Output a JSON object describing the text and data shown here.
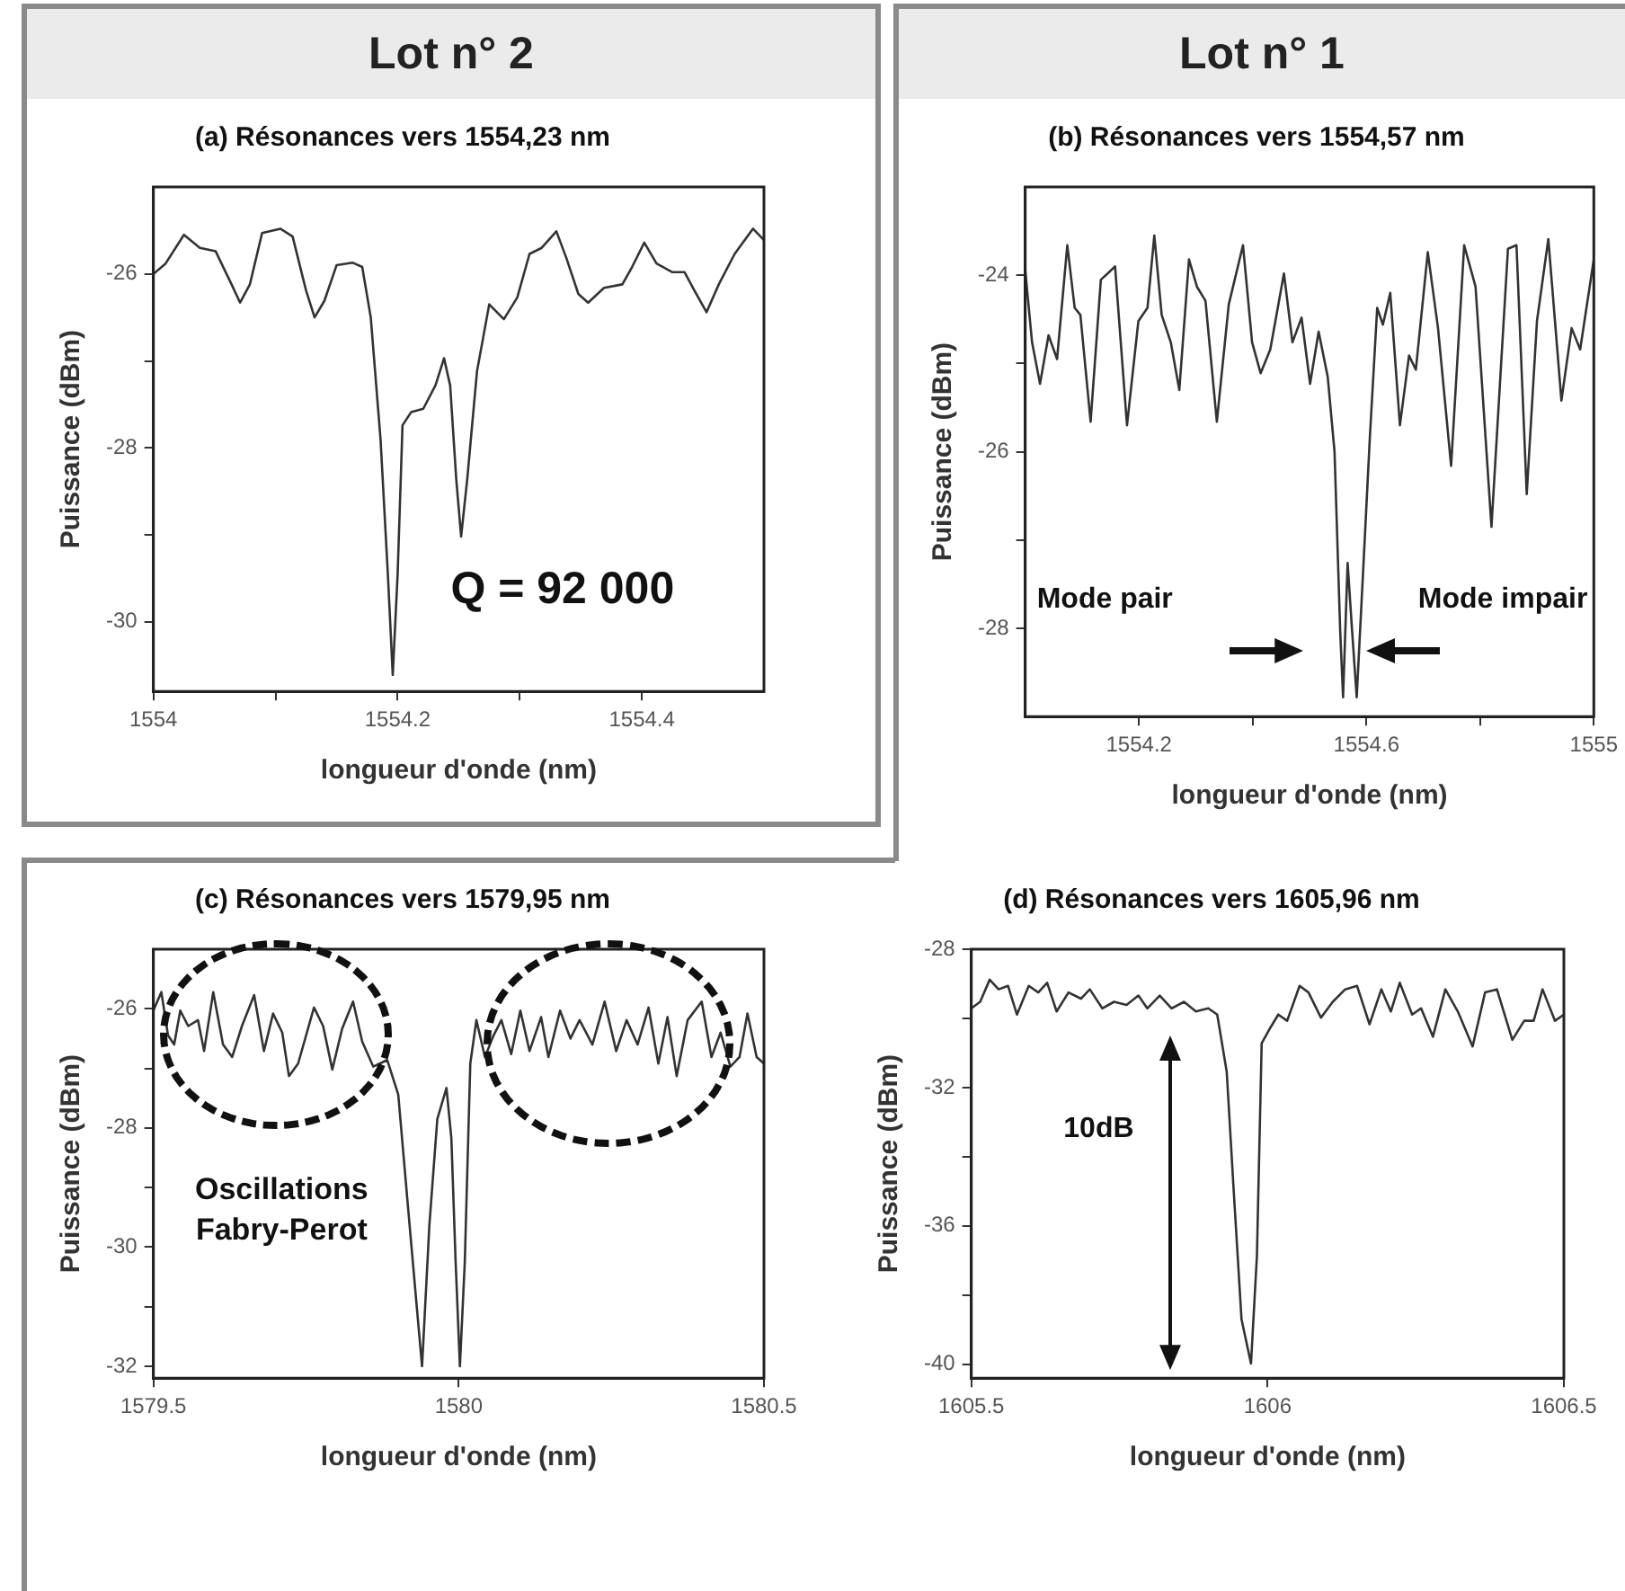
{
  "chart_data": [
    {
      "type": "line",
      "title": "Lot n° 2",
      "subtitle": "(a) Résonances vers 1554,23 nm",
      "xlabel": "longueur d'onde (nm)",
      "ylabel": "Puissance (dBm)",
      "color": "#333333",
      "xlim": [
        1554,
        1554.5
      ],
      "ylim": [
        -30.8,
        -25
      ],
      "xticks": [
        1554,
        {
          "value": 1554.1,
          "label": null
        },
        1554.2,
        {
          "value": 1554.3,
          "label": null
        },
        1554.4
      ],
      "yticks": [
        {
          "value": -29,
          "label": null
        },
        -30,
        -28,
        {
          "value": -27,
          "label": null
        },
        -26
      ],
      "annotations": [
        "Q = 92 000"
      ],
      "x": [
        1554.0,
        1554.01,
        1554.025,
        1554.038,
        1554.051,
        1554.064,
        1554.071,
        1554.079,
        1554.089,
        1554.104,
        1554.114,
        1554.125,
        1554.132,
        1554.14,
        1554.15,
        1554.163,
        1554.171,
        1554.178,
        1554.186,
        1554.192,
        1554.196,
        1554.2,
        1554.204,
        1554.211,
        1554.221,
        1554.231,
        1554.238,
        1554.243,
        1554.248,
        1554.252,
        1554.257,
        1554.265,
        1554.275,
        1554.287,
        1554.298,
        1554.308,
        1554.318,
        1554.33,
        1554.338,
        1554.348,
        1554.356,
        1554.369,
        1554.384,
        1554.392,
        1554.402,
        1554.412,
        1554.425,
        1554.435,
        1554.443,
        1554.453,
        1554.463,
        1554.476,
        1554.491,
        1554.5
      ],
      "values": [
        -26.0,
        -25.88,
        -25.55,
        -25.7,
        -25.74,
        -26.12,
        -26.33,
        -26.12,
        -25.53,
        -25.48,
        -25.57,
        -26.19,
        -26.5,
        -26.31,
        -25.9,
        -25.87,
        -25.92,
        -26.5,
        -27.9,
        -29.45,
        -30.61,
        -29.45,
        -27.74,
        -27.59,
        -27.55,
        -27.28,
        -26.97,
        -27.28,
        -28.36,
        -29.02,
        -28.36,
        -27.12,
        -26.35,
        -26.52,
        -26.27,
        -25.77,
        -25.7,
        -25.51,
        -25.81,
        -26.23,
        -26.33,
        -26.16,
        -26.12,
        -25.92,
        -25.64,
        -25.88,
        -25.98,
        -25.98,
        -26.19,
        -26.44,
        -26.12,
        -25.77,
        -25.48,
        -25.61
      ]
    },
    {
      "type": "line",
      "title": "Lot n° 1",
      "subtitle": "(b) Résonances vers 1554,57 nm",
      "xlabel": "longueur d'onde (nm)",
      "ylabel": "Puissance (dBm)",
      "color": "#333333",
      "xlim": [
        1554,
        1555
      ],
      "ylim": [
        -29,
        -23
      ],
      "xticks": [
        1554.2,
        {
          "value": 1554.4,
          "label": null
        },
        1554.6,
        {
          "value": 1554.8,
          "label": null
        },
        1555
      ],
      "yticks": [
        -28,
        {
          "value": -27,
          "label": null
        },
        -26,
        {
          "value": -25,
          "label": null
        },
        -24
      ],
      "annotations": [
        "Mode pair",
        "Mode impair"
      ],
      "x": [
        1554.0,
        1554.012,
        1554.026,
        1554.041,
        1554.056,
        1554.074,
        1554.087,
        1554.097,
        1554.115,
        1554.133,
        1554.145,
        1554.158,
        1554.179,
        1554.199,
        1554.215,
        1554.227,
        1554.24,
        1554.256,
        1554.271,
        1554.288,
        1554.302,
        1554.317,
        1554.337,
        1554.358,
        1554.383,
        1554.399,
        1554.414,
        1554.431,
        1554.455,
        1554.47,
        1554.486,
        1554.501,
        1554.516,
        1554.532,
        1554.544,
        1554.554,
        1554.559,
        1554.567,
        1554.575,
        1554.583,
        1554.595,
        1554.606,
        1554.619,
        1554.629,
        1554.642,
        1554.659,
        1554.675,
        1554.687,
        1554.708,
        1554.726,
        1554.749,
        1554.772,
        1554.792,
        1554.82,
        1554.849,
        1554.864,
        1554.882,
        1554.9,
        1554.92,
        1554.943,
        1554.961,
        1554.976,
        1555.0
      ],
      "values": [
        -23.94,
        -24.76,
        -25.23,
        -24.68,
        -24.95,
        -23.66,
        -24.37,
        -24.45,
        -25.66,
        -24.05,
        -23.98,
        -23.9,
        -25.7,
        -24.52,
        -24.37,
        -23.55,
        -24.45,
        -24.76,
        -25.3,
        -23.82,
        -24.13,
        -24.29,
        -25.66,
        -24.33,
        -23.66,
        -24.76,
        -25.11,
        -24.84,
        -23.98,
        -24.76,
        -24.48,
        -25.23,
        -24.64,
        -25.15,
        -26.0,
        -28.04,
        -28.78,
        -27.26,
        -28.04,
        -28.78,
        -27.26,
        -25.85,
        -24.37,
        -24.56,
        -24.2,
        -25.7,
        -24.91,
        -25.07,
        -23.74,
        -24.6,
        -26.16,
        -23.66,
        -24.13,
        -26.85,
        -23.7,
        -23.66,
        -26.48,
        -24.52,
        -23.59,
        -25.42,
        -24.6,
        -24.84,
        -23.82
      ]
    },
    {
      "type": "line",
      "title": "(c) Résonances vers 1579,95 nm",
      "xlabel": "longueur d'onde (nm)",
      "ylabel": "Puissance (dBm)",
      "color": "#333333",
      "xlim": [
        1579.5,
        1580.5
      ],
      "ylim": [
        -32.2,
        -25
      ],
      "xticks": [
        1579.5,
        1580,
        1580.5
      ],
      "yticks": [
        -32,
        {
          "value": -31,
          "label": null
        },
        -30,
        {
          "value": -29,
          "label": null
        },
        -28,
        {
          "value": -27,
          "label": null
        },
        -26
      ],
      "annotations": [
        "Oscillations Fabry-Perot"
      ],
      "x": [
        1579.5,
        1579.513,
        1579.524,
        1579.534,
        1579.544,
        1579.557,
        1579.573,
        1579.583,
        1579.598,
        1579.614,
        1579.629,
        1579.645,
        1579.665,
        1579.681,
        1579.696,
        1579.711,
        1579.722,
        1579.737,
        1579.763,
        1579.778,
        1579.793,
        1579.809,
        1579.827,
        1579.842,
        1579.86,
        1579.883,
        1579.901,
        1579.916,
        1579.932,
        1579.94,
        1579.952,
        1579.965,
        1579.98,
        1579.988,
        1579.995,
        1580.002,
        1580.01,
        1580.019,
        1580.029,
        1580.043,
        1580.057,
        1580.07,
        1580.086,
        1580.101,
        1580.116,
        1580.135,
        1580.147,
        1580.166,
        1580.183,
        1580.198,
        1580.219,
        1580.239,
        1580.258,
        1580.275,
        1580.293,
        1580.311,
        1580.327,
        1580.342,
        1580.357,
        1580.375,
        1580.398,
        1580.414,
        1580.429,
        1580.445,
        1580.46,
        1580.473,
        1580.488,
        1580.5
      ],
      "values": [
        -26.03,
        -25.72,
        -26.45,
        -26.6,
        -26.03,
        -26.29,
        -26.19,
        -26.71,
        -25.72,
        -26.6,
        -26.81,
        -26.29,
        -25.77,
        -26.71,
        -26.08,
        -26.4,
        -27.13,
        -26.92,
        -25.98,
        -26.29,
        -27.02,
        -26.34,
        -25.88,
        -26.55,
        -26.97,
        -26.86,
        -27.44,
        -29.21,
        -31.08,
        -32.0,
        -29.63,
        -27.85,
        -27.33,
        -28.17,
        -30.25,
        -32.0,
        -30.25,
        -26.92,
        -26.19,
        -26.81,
        -26.45,
        -26.19,
        -26.76,
        -26.03,
        -26.71,
        -26.14,
        -26.81,
        -26.03,
        -26.5,
        -26.19,
        -26.6,
        -25.88,
        -26.71,
        -26.19,
        -26.6,
        -25.98,
        -26.92,
        -26.14,
        -27.13,
        -26.19,
        -25.88,
        -26.81,
        -26.4,
        -26.97,
        -26.81,
        -26.08,
        -26.81,
        -26.92
      ]
    },
    {
      "type": "line",
      "title": "(d) Résonances vers 1605,96 nm",
      "xlabel": "longueur d'onde (nm)",
      "ylabel": "Puissance (dBm)",
      "color": "#333333",
      "xlim": [
        1605.5,
        1606.5
      ],
      "ylim": [
        -40.4,
        -28
      ],
      "xticks": [
        1605.5,
        1606,
        1606.5
      ],
      "yticks": [
        -40,
        {
          "value": -38,
          "label": null
        },
        -36,
        {
          "value": -34,
          "label": null
        },
        -32,
        {
          "value": -30,
          "label": null
        },
        -28
      ],
      "annotations": [
        "10dB"
      ],
      "x": [
        1605.5,
        1605.515,
        1605.531,
        1605.546,
        1605.562,
        1605.577,
        1605.597,
        1605.613,
        1605.628,
        1605.644,
        1605.664,
        1605.685,
        1605.7,
        1605.721,
        1605.741,
        1605.762,
        1605.782,
        1605.797,
        1605.818,
        1605.838,
        1605.859,
        1605.879,
        1605.9,
        1605.915,
        1605.931,
        1605.943,
        1605.956,
        1605.972,
        1605.982,
        1605.99,
        1606.005,
        1606.018,
        1606.033,
        1606.054,
        1606.069,
        1606.09,
        1606.11,
        1606.131,
        1606.151,
        1606.172,
        1606.192,
        1606.208,
        1606.223,
        1606.244,
        1606.259,
        1606.279,
        1606.3,
        1606.321,
        1606.346,
        1606.367,
        1606.387,
        1606.413,
        1606.433,
        1606.449,
        1606.464,
        1606.485,
        1606.5
      ],
      "values": [
        -29.71,
        -29.52,
        -28.88,
        -29.16,
        -29.06,
        -29.89,
        -29.06,
        -29.25,
        -28.97,
        -29.8,
        -29.25,
        -29.43,
        -29.16,
        -29.71,
        -29.52,
        -29.61,
        -29.34,
        -29.71,
        -29.34,
        -29.71,
        -29.52,
        -29.8,
        -29.71,
        -29.89,
        -31.54,
        -35.03,
        -38.7,
        -39.98,
        -36.86,
        -30.72,
        -30.26,
        -29.89,
        -30.07,
        -29.06,
        -29.25,
        -29.98,
        -29.52,
        -29.16,
        -29.06,
        -30.17,
        -29.16,
        -29.8,
        -28.97,
        -29.89,
        -29.71,
        -30.53,
        -29.16,
        -29.8,
        -30.81,
        -29.25,
        -29.16,
        -30.62,
        -30.07,
        -30.07,
        -29.16,
        -30.07,
        -29.89
      ]
    }
  ]
}
